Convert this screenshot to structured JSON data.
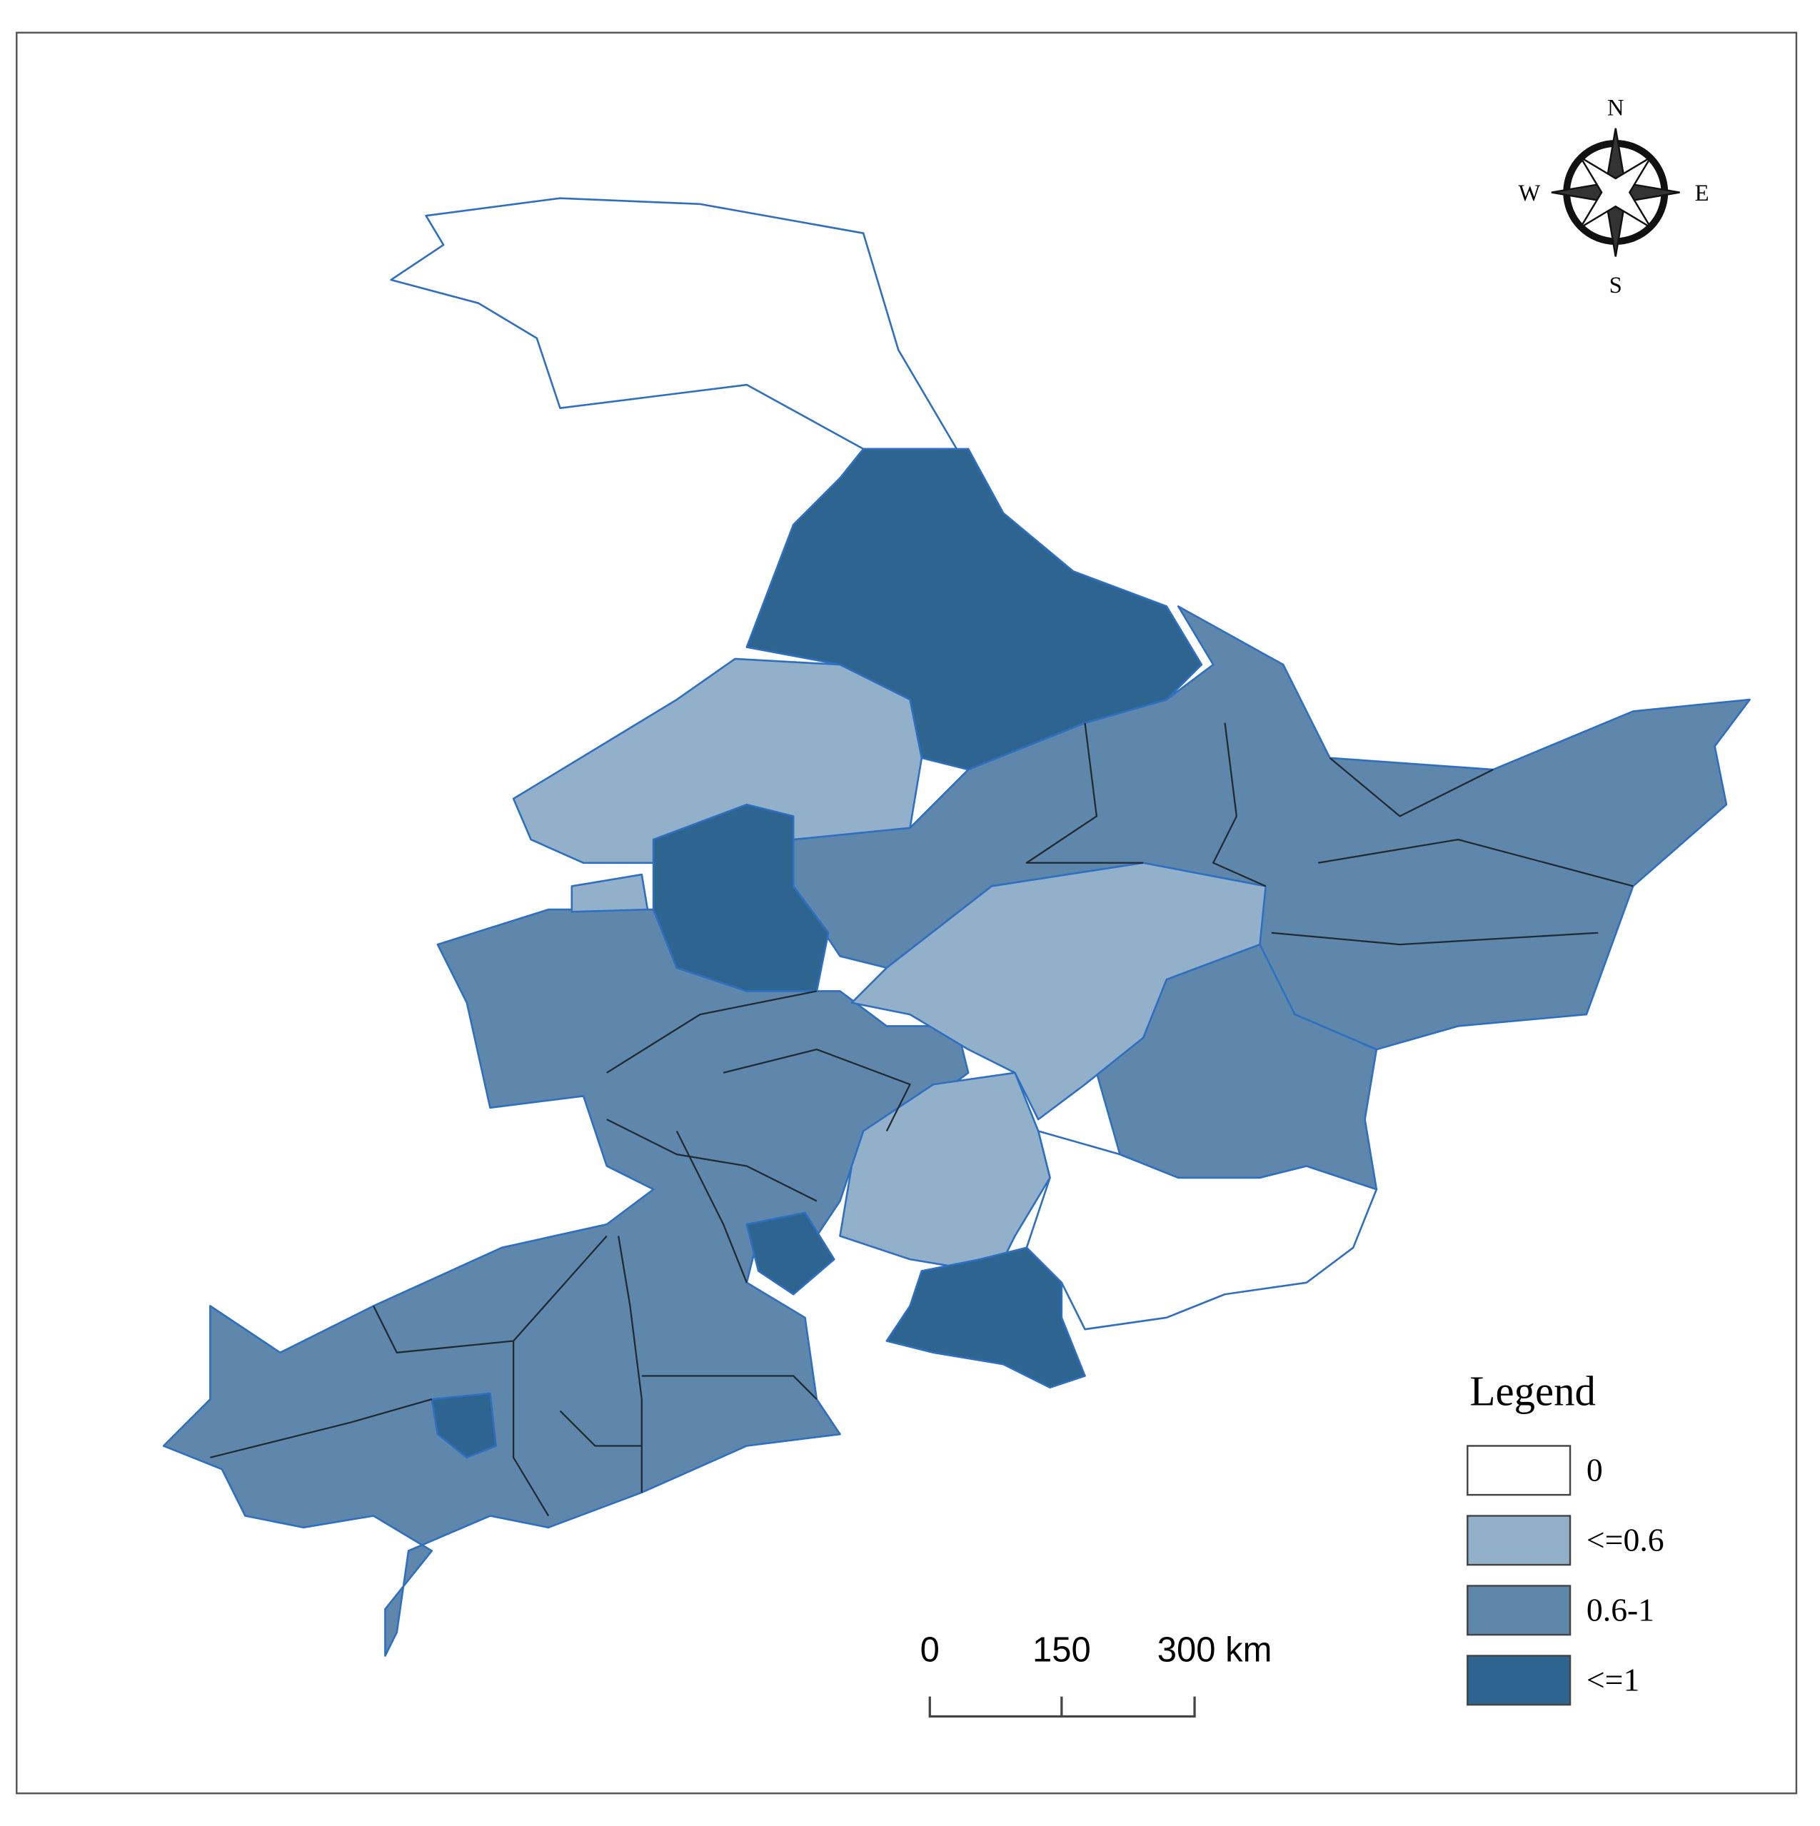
{
  "compass": {
    "north": "N",
    "south": "S",
    "east": "E",
    "west": "W"
  },
  "legend": {
    "title": "Legend",
    "items": [
      {
        "label": "0",
        "color": "#ffffff"
      },
      {
        "label": "<=0.6",
        "color": "#93b0cb"
      },
      {
        "label": "0.6-1",
        "color": "#5f87ab"
      },
      {
        "label": "<=1",
        "color": "#2d6590"
      }
    ]
  },
  "scale_bar": {
    "labels": [
      "0",
      "150",
      "300 km"
    ]
  }
}
